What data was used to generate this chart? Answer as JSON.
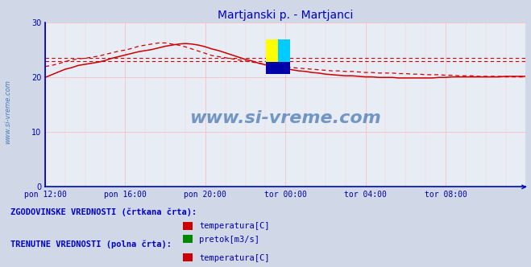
{
  "title": "Martjanski p. - Martjanci",
  "title_color": "#0000cc",
  "fig_bg_color": "#d0d8e8",
  "plot_bg_color": "#e8ecf4",
  "xlim": [
    0,
    288
  ],
  "ylim": [
    0,
    30
  ],
  "yticks": [
    0,
    10,
    20,
    30
  ],
  "xtick_labels": [
    "pon 12:00",
    "pon 16:00",
    "pon 20:00",
    "tor 00:00",
    "tor 04:00",
    "tor 08:00"
  ],
  "xtick_positions": [
    0,
    48,
    96,
    144,
    192,
    240
  ],
  "axis_color": "#0000cc",
  "watermark": "www.si-vreme.com",
  "watermark_color": "#4a7ab5",
  "temp_color": "#cc0000",
  "flow_color": "#008800",
  "temp_hist_values_x": [
    0,
    4,
    8,
    12,
    16,
    20,
    24,
    28,
    32,
    36,
    40,
    44,
    48,
    52,
    56,
    60,
    64,
    68,
    72,
    76,
    80,
    84,
    88,
    92,
    96,
    100,
    104,
    108,
    112,
    116,
    120,
    124,
    128,
    132,
    136,
    140,
    144,
    148,
    152,
    156,
    160,
    164,
    168,
    172,
    176,
    180,
    184,
    188,
    192,
    196,
    200,
    204,
    208,
    212,
    216,
    220,
    224,
    228,
    232,
    236,
    240,
    244,
    248,
    252,
    256,
    260,
    264,
    268,
    272,
    276,
    280,
    284,
    288
  ],
  "temp_hist_values_y": [
    22.0,
    22.2,
    22.5,
    22.9,
    23.2,
    23.4,
    23.5,
    23.7,
    23.9,
    24.2,
    24.5,
    24.8,
    25.0,
    25.3,
    25.7,
    25.9,
    26.1,
    26.3,
    26.3,
    26.1,
    25.9,
    25.6,
    25.2,
    24.8,
    24.4,
    24.0,
    23.8,
    23.6,
    23.4,
    23.2,
    23.0,
    22.8,
    22.6,
    22.4,
    22.3,
    22.1,
    21.9,
    21.8,
    21.7,
    21.6,
    21.5,
    21.4,
    21.3,
    21.2,
    21.2,
    21.1,
    21.1,
    21.0,
    20.9,
    20.9,
    20.8,
    20.8,
    20.8,
    20.7,
    20.7,
    20.6,
    20.6,
    20.5,
    20.5,
    20.5,
    20.4,
    20.4,
    20.3,
    20.3,
    20.3,
    20.2,
    20.2,
    20.2,
    20.2,
    20.1,
    20.1,
    20.1,
    20.1
  ],
  "temp_curr_values_x": [
    0,
    4,
    8,
    12,
    16,
    20,
    24,
    28,
    32,
    36,
    40,
    44,
    48,
    52,
    56,
    60,
    64,
    68,
    72,
    76,
    80,
    84,
    88,
    92,
    96,
    100,
    104,
    108,
    112,
    116,
    120,
    124,
    128,
    132,
    136,
    140,
    144,
    148,
    152,
    156,
    160,
    164,
    168,
    172,
    176,
    180,
    184,
    188,
    192,
    196,
    200,
    204,
    208,
    212,
    216,
    220,
    224,
    228,
    232,
    236,
    240,
    244,
    248,
    252,
    256,
    260,
    264,
    268,
    272,
    276,
    280,
    284,
    288
  ],
  "temp_curr_values_y": [
    20.0,
    20.5,
    21.0,
    21.5,
    21.8,
    22.2,
    22.4,
    22.6,
    22.8,
    23.1,
    23.5,
    23.8,
    24.1,
    24.4,
    24.7,
    24.9,
    25.1,
    25.4,
    25.7,
    25.9,
    26.1,
    26.2,
    26.1,
    25.9,
    25.6,
    25.2,
    24.9,
    24.5,
    24.1,
    23.7,
    23.3,
    23.0,
    22.6,
    22.3,
    22.1,
    21.9,
    21.6,
    21.4,
    21.2,
    21.1,
    20.9,
    20.8,
    20.6,
    20.5,
    20.4,
    20.3,
    20.3,
    20.2,
    20.1,
    20.1,
    20.0,
    20.0,
    20.0,
    19.9,
    19.9,
    19.9,
    19.9,
    19.9,
    19.9,
    20.0,
    20.0,
    20.1,
    20.1,
    20.1,
    20.1,
    20.1,
    20.1,
    20.1,
    20.1,
    20.2,
    20.2,
    20.2,
    20.2
  ],
  "flow_curr_values_y": [
    0.0,
    0.0,
    0.0,
    0.0,
    0.0,
    0.0,
    0.0,
    0.0,
    0.0,
    0.0,
    0.0,
    0.0,
    0.0,
    0.0,
    0.0,
    0.0,
    0.0,
    0.0,
    0.0,
    0.0,
    0.0,
    0.0,
    0.0,
    0.0,
    0.0,
    0.0,
    0.0,
    0.0,
    0.0,
    0.0,
    0.0,
    0.0,
    0.0,
    0.0,
    0.0,
    0.0,
    0.0,
    0.0,
    0.0,
    0.0,
    0.0,
    0.0,
    0.0,
    0.0,
    0.0,
    0.0,
    0.0,
    0.0,
    0.0,
    0.0,
    0.0,
    0.0,
    0.0,
    0.0,
    0.0,
    0.0,
    0.0,
    0.0,
    0.0,
    0.0,
    0.0,
    0.0,
    0.0,
    0.0,
    0.0,
    0.0,
    0.0,
    0.0,
    0.0,
    0.0,
    0.0,
    0.0,
    0.0
  ],
  "hist_avg_temp_low": 23.0,
  "hist_avg_temp_high": 23.5,
  "text_hist": "ZGODOVINSKE VREDNOSTI (črtkana črta):",
  "text_curr": "TRENUTNE VREDNOSTI (polna črta):",
  "legend_label_temp": "temperatura[C]",
  "legend_label_flow": "pretok[m3/s]",
  "left_label": "www.si-vreme.com",
  "logo_yellow": "#ffff00",
  "logo_cyan": "#00ccff",
  "logo_blue": "#0000aa"
}
